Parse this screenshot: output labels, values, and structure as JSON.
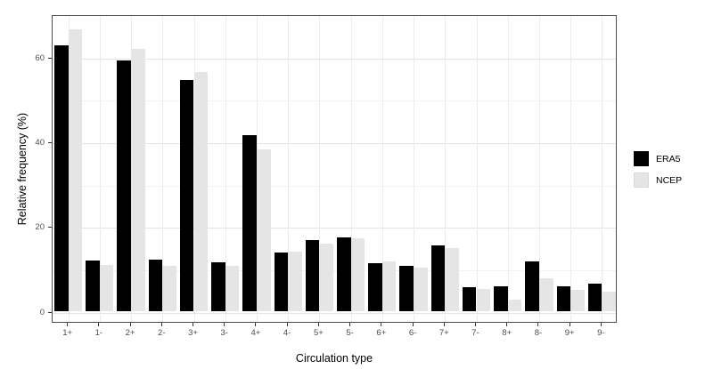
{
  "chart_data": {
    "type": "bar",
    "title": "",
    "xlabel": "Circulation type",
    "ylabel": "Relative frequency (%)",
    "categories": [
      "1+",
      "1-",
      "2+",
      "2-",
      "3+",
      "3-",
      "4+",
      "4-",
      "5+",
      "5-",
      "6+",
      "6-",
      "7+",
      "7-",
      "8+",
      "8-",
      "9+",
      "9-"
    ],
    "series": [
      {
        "name": "ERA5",
        "color": "#000000",
        "values": [
          62.7,
          11.9,
          59.1,
          12.0,
          54.5,
          11.5,
          41.5,
          13.7,
          16.7,
          17.4,
          11.2,
          10.7,
          15.4,
          5.5,
          5.9,
          11.7,
          5.7,
          6.4
        ]
      },
      {
        "name": "NCEP",
        "color": "#e5e5e5",
        "values": [
          66.5,
          10.9,
          61.9,
          10.7,
          56.4,
          10.6,
          38.2,
          13.9,
          15.8,
          17.2,
          11.6,
          10.1,
          14.9,
          5.1,
          2.6,
          7.7,
          4.9,
          4.6
        ]
      }
    ],
    "ylim": [
      0,
      70
    ],
    "yticks": [
      0,
      20,
      40,
      60
    ],
    "yticks_minor": [
      10,
      30,
      50
    ],
    "grid": true,
    "legend_position": "right",
    "bar_mode": "grouped"
  },
  "colors": {
    "panel_border": "#4d4d4d",
    "grid_major": "#e4e4e4",
    "grid_minor": "#f2f2f2",
    "tick_label": "#4d4d4d",
    "background": "#ffffff"
  }
}
